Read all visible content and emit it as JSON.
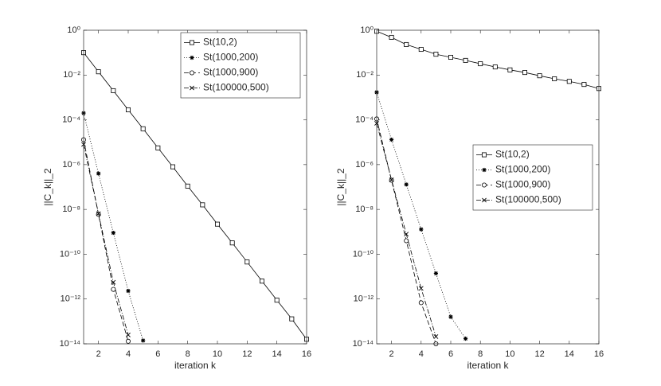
{
  "chart_data": [
    {
      "type": "line",
      "xlabel": "iteration k",
      "ylabel": "||C_k||_2",
      "yscale": "log",
      "legend": "upper right",
      "grid": false,
      "x": [
        1,
        2,
        3,
        4,
        5,
        6,
        7,
        8,
        9,
        10,
        11,
        12,
        13,
        14,
        15,
        16
      ],
      "xlim": [
        1,
        16
      ],
      "xticks": [
        2,
        4,
        6,
        8,
        10,
        12,
        14,
        16
      ],
      "ylim": [
        1e-14,
        1
      ],
      "yticks": [
        {
          "value": 1e-14,
          "label": "10⁻¹⁴"
        },
        {
          "value": 1e-12,
          "label": "10⁻¹²"
        },
        {
          "value": 1e-10,
          "label": "10⁻¹⁰"
        },
        {
          "value": 1e-08,
          "label": "10⁻⁸"
        },
        {
          "value": 1e-06,
          "label": "10⁻⁶"
        },
        {
          "value": 0.0001,
          "label": "10⁻⁴"
        },
        {
          "value": 0.01,
          "label": "10⁻²"
        },
        {
          "value": 1,
          "label": "10⁰"
        }
      ],
      "series": [
        {
          "name": "St(10,2)",
          "color": "#000000",
          "marker": "square",
          "linestyle": "solid",
          "values": [
            0.1,
            0.014,
            0.002,
            0.00028,
            4e-05,
            5.6e-06,
            8e-07,
            1.1e-07,
            1.6e-08,
            2.2e-09,
            3.2e-10,
            4.5e-11,
            6.3e-12,
            8.9e-13,
            1.3e-13,
            1.6e-14
          ]
        },
        {
          "name": "St(1000,200)",
          "color": "#000000",
          "marker": "star",
          "linestyle": "dotted",
          "values": [
            0.0002,
            4e-07,
            9e-10,
            2.3e-12,
            1.4e-14,
            null,
            null,
            null,
            null,
            null,
            null,
            null,
            null,
            null,
            null,
            null
          ]
        },
        {
          "name": "St(1000,900)",
          "color": "#000000",
          "marker": "circle",
          "linestyle": "dashed",
          "values": [
            1.3e-05,
            6e-09,
            2.7e-12,
            1.3e-14,
            null,
            null,
            null,
            null,
            null,
            null,
            null,
            null,
            null,
            null,
            null,
            null
          ]
        },
        {
          "name": "St(100000,500)",
          "color": "#000000",
          "marker": "x",
          "linestyle": "dashdot",
          "values": [
            8e-06,
            6.5e-09,
            5.6e-12,
            2.5e-14,
            null,
            null,
            null,
            null,
            null,
            null,
            null,
            null,
            null,
            null,
            null,
            null
          ]
        }
      ]
    },
    {
      "type": "line",
      "xlabel": "iteration k",
      "ylabel": "||C_k||_2",
      "yscale": "log",
      "legend": "center right",
      "grid": false,
      "x": [
        1,
        2,
        3,
        4,
        5,
        6,
        7,
        8,
        9,
        10,
        11,
        12,
        13,
        14,
        15,
        16
      ],
      "xlim": [
        1,
        16
      ],
      "xticks": [
        2,
        4,
        6,
        8,
        10,
        12,
        14,
        16
      ],
      "ylim": [
        1e-14,
        1
      ],
      "yticks": [
        {
          "value": 1e-14,
          "label": "10⁻¹⁴"
        },
        {
          "value": 1e-12,
          "label": "10⁻¹²"
        },
        {
          "value": 1e-10,
          "label": "10⁻¹⁰"
        },
        {
          "value": 1e-08,
          "label": "10⁻⁸"
        },
        {
          "value": 1e-06,
          "label": "10⁻⁶"
        },
        {
          "value": 0.0001,
          "label": "10⁻⁴"
        },
        {
          "value": 0.01,
          "label": "10⁻²"
        },
        {
          "value": 1,
          "label": "10⁰"
        }
      ],
      "series": [
        {
          "name": "St(10,2)",
          "color": "#000000",
          "marker": "square",
          "linestyle": "solid",
          "values": [
            0.9,
            0.48,
            0.23,
            0.14,
            0.085,
            0.062,
            0.045,
            0.032,
            0.023,
            0.017,
            0.013,
            0.0093,
            0.0068,
            0.0052,
            0.0038,
            0.0025
          ]
        },
        {
          "name": "St(1000,200)",
          "color": "#000000",
          "marker": "star",
          "linestyle": "dotted",
          "values": [
            0.0017,
            1.3e-05,
            1.3e-07,
            1.3e-09,
            1.4e-11,
            1.6e-13,
            1.7e-14,
            null,
            null,
            null,
            null,
            null,
            null,
            null,
            null,
            null
          ]
        },
        {
          "name": "St(1000,900)",
          "color": "#000000",
          "marker": "circle",
          "linestyle": "dashed",
          "values": [
            0.00011,
            2e-07,
            4e-10,
            6.8e-13,
            1e-14,
            null,
            null,
            null,
            null,
            null,
            null,
            null,
            null,
            null,
            null,
            null
          ]
        },
        {
          "name": "St(100000,500)",
          "color": "#000000",
          "marker": "x",
          "linestyle": "dashdot",
          "values": [
            7e-05,
            2.1e-07,
            7.9e-10,
            3e-12,
            2.1e-14,
            null,
            null,
            null,
            null,
            null,
            null,
            null,
            null,
            null,
            null,
            null
          ]
        }
      ]
    }
  ]
}
